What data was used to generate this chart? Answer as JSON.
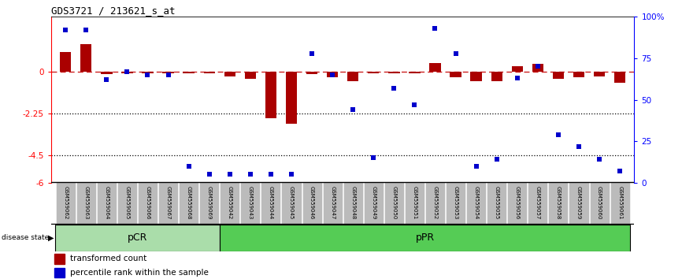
{
  "title": "GDS3721 / 213621_s_at",
  "samples": [
    "GSM559062",
    "GSM559063",
    "GSM559064",
    "GSM559065",
    "GSM559066",
    "GSM559067",
    "GSM559068",
    "GSM559069",
    "GSM559042",
    "GSM559043",
    "GSM559044",
    "GSM559045",
    "GSM559046",
    "GSM559047",
    "GSM559048",
    "GSM559049",
    "GSM559050",
    "GSM559051",
    "GSM559052",
    "GSM559053",
    "GSM559054",
    "GSM559055",
    "GSM559056",
    "GSM559057",
    "GSM559058",
    "GSM559059",
    "GSM559060",
    "GSM559061"
  ],
  "transformed_count": [
    1.1,
    1.5,
    -0.12,
    -0.08,
    -0.05,
    -0.05,
    -0.06,
    -0.05,
    -0.25,
    -0.35,
    -2.5,
    -2.8,
    -0.1,
    -0.3,
    -0.48,
    -0.06,
    -0.08,
    -0.08,
    0.5,
    -0.3,
    -0.48,
    -0.48,
    0.3,
    0.45,
    -0.35,
    -0.3,
    -0.25,
    -0.6
  ],
  "percentile_rank": [
    92,
    92,
    62,
    67,
    65,
    65,
    10,
    5,
    5,
    5,
    5,
    5,
    78,
    65,
    44,
    15,
    57,
    47,
    93,
    78,
    10,
    14,
    63,
    70,
    29,
    22,
    14,
    7
  ],
  "pCR_indices": [
    0,
    1,
    2,
    3,
    4,
    5,
    6,
    7
  ],
  "pPR_indices": [
    8,
    9,
    10,
    11,
    12,
    13,
    14,
    15,
    16,
    17,
    18,
    19,
    20,
    21,
    22,
    23,
    24,
    25,
    26,
    27
  ],
  "ylim": [
    -6,
    3
  ],
  "yticks_left": [
    0,
    -2.25,
    -4.5,
    -6
  ],
  "yticks_right": [
    0,
    25,
    50,
    75,
    100
  ],
  "hlines": [
    -2.25,
    -4.5
  ],
  "bar_color": "#AA0000",
  "scatter_color": "#0000CC",
  "dashed_line_color": "#CC2222",
  "pCR_color": "#AADDAA",
  "pPR_color": "#55CC55",
  "bg_color": "#FFFFFF",
  "label_bg_color": "#BBBBBB",
  "bar_width": 0.55
}
